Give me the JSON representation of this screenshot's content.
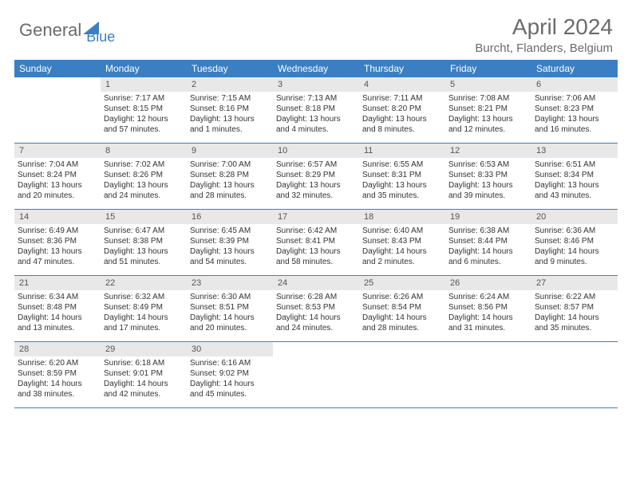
{
  "logo": {
    "text1": "General",
    "text2": "Blue"
  },
  "title": "April 2024",
  "location": "Burcht, Flanders, Belgium",
  "colors": {
    "header_bg": "#3a7fc4",
    "header_text": "#ffffff",
    "cell_num_bg": "#e8e8e8",
    "text": "#333333",
    "title": "#6b6b6b",
    "border": "#3a7fc4"
  },
  "day_names": [
    "Sunday",
    "Monday",
    "Tuesday",
    "Wednesday",
    "Thursday",
    "Friday",
    "Saturday"
  ],
  "weeks": [
    [
      {
        "n": "",
        "sr": "",
        "ss": "",
        "dl": ""
      },
      {
        "n": "1",
        "sr": "Sunrise: 7:17 AM",
        "ss": "Sunset: 8:15 PM",
        "dl": "Daylight: 12 hours and 57 minutes."
      },
      {
        "n": "2",
        "sr": "Sunrise: 7:15 AM",
        "ss": "Sunset: 8:16 PM",
        "dl": "Daylight: 13 hours and 1 minutes."
      },
      {
        "n": "3",
        "sr": "Sunrise: 7:13 AM",
        "ss": "Sunset: 8:18 PM",
        "dl": "Daylight: 13 hours and 4 minutes."
      },
      {
        "n": "4",
        "sr": "Sunrise: 7:11 AM",
        "ss": "Sunset: 8:20 PM",
        "dl": "Daylight: 13 hours and 8 minutes."
      },
      {
        "n": "5",
        "sr": "Sunrise: 7:08 AM",
        "ss": "Sunset: 8:21 PM",
        "dl": "Daylight: 13 hours and 12 minutes."
      },
      {
        "n": "6",
        "sr": "Sunrise: 7:06 AM",
        "ss": "Sunset: 8:23 PM",
        "dl": "Daylight: 13 hours and 16 minutes."
      }
    ],
    [
      {
        "n": "7",
        "sr": "Sunrise: 7:04 AM",
        "ss": "Sunset: 8:24 PM",
        "dl": "Daylight: 13 hours and 20 minutes."
      },
      {
        "n": "8",
        "sr": "Sunrise: 7:02 AM",
        "ss": "Sunset: 8:26 PM",
        "dl": "Daylight: 13 hours and 24 minutes."
      },
      {
        "n": "9",
        "sr": "Sunrise: 7:00 AM",
        "ss": "Sunset: 8:28 PM",
        "dl": "Daylight: 13 hours and 28 minutes."
      },
      {
        "n": "10",
        "sr": "Sunrise: 6:57 AM",
        "ss": "Sunset: 8:29 PM",
        "dl": "Daylight: 13 hours and 32 minutes."
      },
      {
        "n": "11",
        "sr": "Sunrise: 6:55 AM",
        "ss": "Sunset: 8:31 PM",
        "dl": "Daylight: 13 hours and 35 minutes."
      },
      {
        "n": "12",
        "sr": "Sunrise: 6:53 AM",
        "ss": "Sunset: 8:33 PM",
        "dl": "Daylight: 13 hours and 39 minutes."
      },
      {
        "n": "13",
        "sr": "Sunrise: 6:51 AM",
        "ss": "Sunset: 8:34 PM",
        "dl": "Daylight: 13 hours and 43 minutes."
      }
    ],
    [
      {
        "n": "14",
        "sr": "Sunrise: 6:49 AM",
        "ss": "Sunset: 8:36 PM",
        "dl": "Daylight: 13 hours and 47 minutes."
      },
      {
        "n": "15",
        "sr": "Sunrise: 6:47 AM",
        "ss": "Sunset: 8:38 PM",
        "dl": "Daylight: 13 hours and 51 minutes."
      },
      {
        "n": "16",
        "sr": "Sunrise: 6:45 AM",
        "ss": "Sunset: 8:39 PM",
        "dl": "Daylight: 13 hours and 54 minutes."
      },
      {
        "n": "17",
        "sr": "Sunrise: 6:42 AM",
        "ss": "Sunset: 8:41 PM",
        "dl": "Daylight: 13 hours and 58 minutes."
      },
      {
        "n": "18",
        "sr": "Sunrise: 6:40 AM",
        "ss": "Sunset: 8:43 PM",
        "dl": "Daylight: 14 hours and 2 minutes."
      },
      {
        "n": "19",
        "sr": "Sunrise: 6:38 AM",
        "ss": "Sunset: 8:44 PM",
        "dl": "Daylight: 14 hours and 6 minutes."
      },
      {
        "n": "20",
        "sr": "Sunrise: 6:36 AM",
        "ss": "Sunset: 8:46 PM",
        "dl": "Daylight: 14 hours and 9 minutes."
      }
    ],
    [
      {
        "n": "21",
        "sr": "Sunrise: 6:34 AM",
        "ss": "Sunset: 8:48 PM",
        "dl": "Daylight: 14 hours and 13 minutes."
      },
      {
        "n": "22",
        "sr": "Sunrise: 6:32 AM",
        "ss": "Sunset: 8:49 PM",
        "dl": "Daylight: 14 hours and 17 minutes."
      },
      {
        "n": "23",
        "sr": "Sunrise: 6:30 AM",
        "ss": "Sunset: 8:51 PM",
        "dl": "Daylight: 14 hours and 20 minutes."
      },
      {
        "n": "24",
        "sr": "Sunrise: 6:28 AM",
        "ss": "Sunset: 8:53 PM",
        "dl": "Daylight: 14 hours and 24 minutes."
      },
      {
        "n": "25",
        "sr": "Sunrise: 6:26 AM",
        "ss": "Sunset: 8:54 PM",
        "dl": "Daylight: 14 hours and 28 minutes."
      },
      {
        "n": "26",
        "sr": "Sunrise: 6:24 AM",
        "ss": "Sunset: 8:56 PM",
        "dl": "Daylight: 14 hours and 31 minutes."
      },
      {
        "n": "27",
        "sr": "Sunrise: 6:22 AM",
        "ss": "Sunset: 8:57 PM",
        "dl": "Daylight: 14 hours and 35 minutes."
      }
    ],
    [
      {
        "n": "28",
        "sr": "Sunrise: 6:20 AM",
        "ss": "Sunset: 8:59 PM",
        "dl": "Daylight: 14 hours and 38 minutes."
      },
      {
        "n": "29",
        "sr": "Sunrise: 6:18 AM",
        "ss": "Sunset: 9:01 PM",
        "dl": "Daylight: 14 hours and 42 minutes."
      },
      {
        "n": "30",
        "sr": "Sunrise: 6:16 AM",
        "ss": "Sunset: 9:02 PM",
        "dl": "Daylight: 14 hours and 45 minutes."
      },
      {
        "n": "",
        "sr": "",
        "ss": "",
        "dl": ""
      },
      {
        "n": "",
        "sr": "",
        "ss": "",
        "dl": ""
      },
      {
        "n": "",
        "sr": "",
        "ss": "",
        "dl": ""
      },
      {
        "n": "",
        "sr": "",
        "ss": "",
        "dl": ""
      }
    ]
  ]
}
